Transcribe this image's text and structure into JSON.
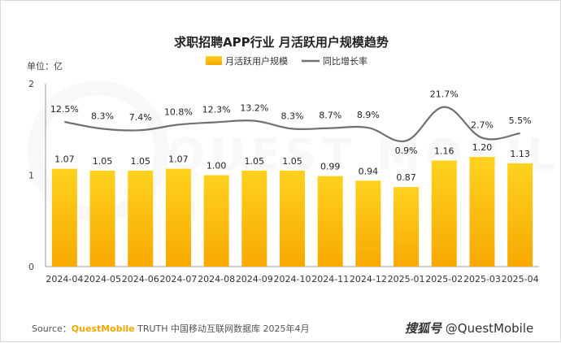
{
  "chart_data": {
    "type": "bar+line",
    "title": "求职招聘APP行业 月活跃用户规模趋势",
    "unit_label": "单位：亿",
    "categories": [
      "2024-04",
      "2024-05",
      "2024-06",
      "2024-07",
      "2024-08",
      "2024-09",
      "2024-10",
      "2024-11",
      "2024-12",
      "2025-01",
      "2025-02",
      "2025-03",
      "2025-04"
    ],
    "series": [
      {
        "name": "月活跃用户规模",
        "type": "bar",
        "values": [
          1.07,
          1.05,
          1.05,
          1.07,
          1.0,
          1.05,
          1.05,
          0.99,
          0.94,
          0.87,
          1.16,
          1.2,
          1.13
        ],
        "labels": [
          "1.07",
          "1.05",
          "1.05",
          "1.07",
          "1.00",
          "1.05",
          "1.05",
          "0.99",
          "0.94",
          "0.87",
          "1.16",
          "1.20",
          "1.13"
        ]
      },
      {
        "name": "同比增长率",
        "type": "line",
        "values": [
          12.5,
          8.3,
          7.4,
          10.8,
          12.3,
          13.2,
          8.3,
          8.7,
          8.9,
          0.9,
          21.7,
          2.7,
          5.5
        ],
        "labels": [
          "12.5%",
          "8.3%",
          "7.4%",
          "10.8%",
          "12.3%",
          "13.2%",
          "8.3%",
          "8.7%",
          "8.9%",
          "0.9%",
          "21.7%",
          "2.7%",
          "5.5%"
        ]
      }
    ],
    "y_ticks": [
      "0",
      "1",
      "2"
    ],
    "ylim": [
      0,
      2
    ],
    "legend_position": "top-center",
    "colors": {
      "bar_top": "#ffd21f",
      "bar_bottom": "#f7a900",
      "line": "#707070",
      "axis": "#9a9a9a"
    }
  },
  "source": {
    "prefix": "Source：",
    "brand": "QuestMobile",
    "text": " TRUTH 中国移动互联网数据库 2025年4月"
  },
  "watermark": {
    "site": "搜狐号",
    "handle": "@QuestMobile",
    "background": "QUEST MOBILE"
  }
}
